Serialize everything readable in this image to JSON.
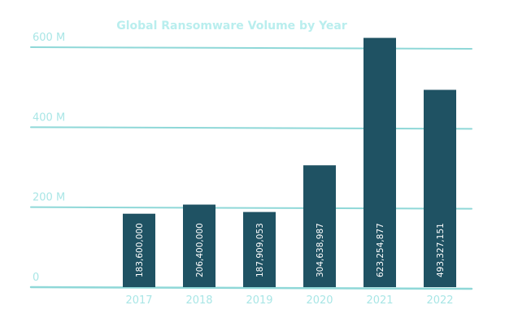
{
  "chart_data": {
    "type": "bar",
    "title": "Global Ransomware Volume by Year",
    "xlabel": "",
    "ylabel": "",
    "categories": [
      "2017",
      "2018",
      "2019",
      "2020",
      "2021",
      "2022"
    ],
    "values": [
      183600000,
      206400000,
      187909053,
      304638987,
      623254877,
      493327151
    ],
    "value_labels": [
      "183,600,000",
      "206,400,000",
      "187,909,053",
      "304,638,987",
      "623,254,877",
      "493,327,151"
    ],
    "ylim": [
      0,
      600000000
    ],
    "yticks": [
      {
        "value": 0,
        "label": "0"
      },
      {
        "value": 200000000,
        "label": "200 M"
      },
      {
        "value": 400000000,
        "label": "400 M"
      },
      {
        "value": 600000000,
        "label": "600 M"
      }
    ],
    "grid": true,
    "legend": "none",
    "colors": {
      "bar": "#1f5263",
      "grid": "#8fd8d8",
      "axis_text": "#a9e6e6",
      "title": "#b9eeee",
      "value_text": "#ffffff",
      "background": "#ffffff"
    }
  }
}
